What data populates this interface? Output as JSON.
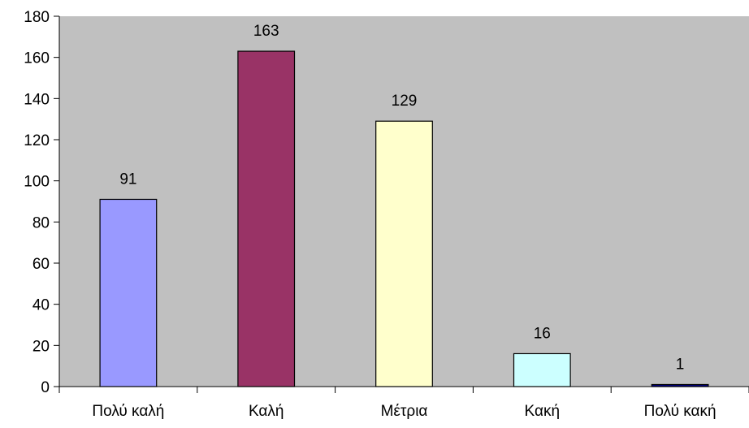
{
  "chart_data": {
    "type": "bar",
    "title": "",
    "xlabel": "",
    "ylabel": "",
    "categories": [
      "Πολύ καλή",
      "Καλή",
      "Μέτρια",
      "Κακή",
      "Πολύ κακή"
    ],
    "values": [
      91,
      163,
      129,
      16,
      1
    ],
    "data_labels": [
      "91",
      "163",
      "129",
      "16",
      "1"
    ],
    "ylim": [
      0,
      180
    ],
    "y_ticks": [
      0,
      20,
      40,
      60,
      80,
      100,
      120,
      140,
      160,
      180
    ],
    "y_tick_labels": [
      "0",
      "20",
      "40",
      "60",
      "80",
      "100",
      "120",
      "140",
      "160",
      "180"
    ],
    "grid": false,
    "legend": "none",
    "plot_background": "#c0c0c0",
    "bar_colors": [
      "#9999ff",
      "#993366",
      "#ffffcc",
      "#ccffff",
      "#000080"
    ]
  }
}
